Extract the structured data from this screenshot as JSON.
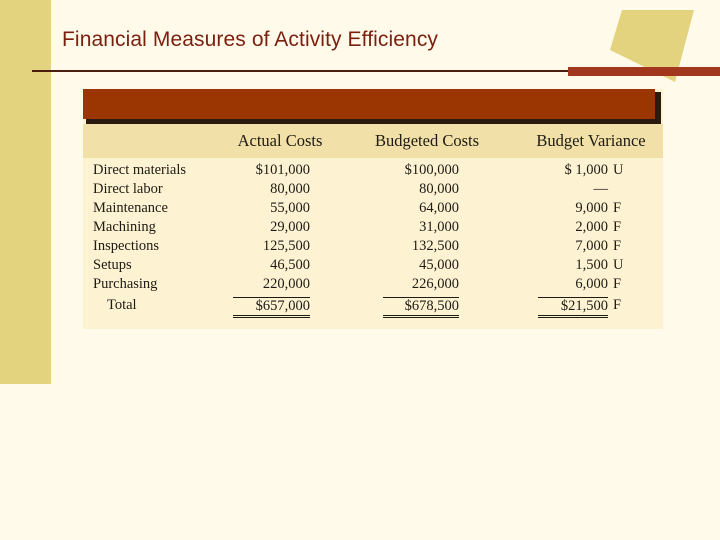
{
  "slide": {
    "title": "Financial Measures of Activity Efficiency"
  },
  "colors": {
    "background": "#fffaea",
    "accent_band": "#9b3602",
    "title_text": "#7b1f0e",
    "side_band": "#e3d37f"
  },
  "table": {
    "headers": {
      "actual": "Actual Costs",
      "budgeted": "Budgeted Costs",
      "variance": "Budget Variance"
    },
    "rows": [
      {
        "label": "Direct materials",
        "actual": "$101,000",
        "budgeted": "$100,000",
        "variance": "$ 1,000",
        "flag": "U"
      },
      {
        "label": "Direct labor",
        "actual": "80,000",
        "budgeted": "80,000",
        "variance": "—",
        "flag": ""
      },
      {
        "label": "Maintenance",
        "actual": "55,000",
        "budgeted": "64,000",
        "variance": "9,000",
        "flag": "F"
      },
      {
        "label": "Machining",
        "actual": "29,000",
        "budgeted": "31,000",
        "variance": "2,000",
        "flag": "F"
      },
      {
        "label": "Inspections",
        "actual": "125,500",
        "budgeted": "132,500",
        "variance": "7,000",
        "flag": "F"
      },
      {
        "label": "Setups",
        "actual": "46,500",
        "budgeted": "45,000",
        "variance": "1,500",
        "flag": "U"
      },
      {
        "label": "Purchasing",
        "actual": "220,000",
        "budgeted": "226,000",
        "variance": "6,000",
        "flag": "F"
      }
    ],
    "total": {
      "label": "Total",
      "actual": "$657,000",
      "budgeted": "$678,500",
      "variance": "$21,500",
      "flag": "F"
    }
  }
}
